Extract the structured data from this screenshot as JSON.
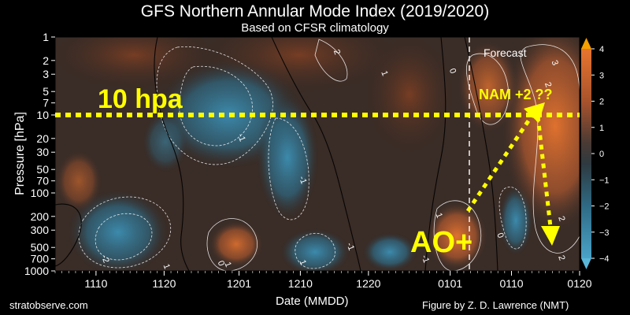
{
  "chart_data": {
    "type": "heatmap",
    "title": "GFS Northern Annular Mode Index (2019/2020)",
    "subtitle": "Based on CFSR climatology",
    "xlabel": "Date (MMDD)",
    "ylabel": "Pressure [hPa]",
    "x_ticks": [
      "1110",
      "1120",
      "1201",
      "1210",
      "1220",
      "0101",
      "0110",
      "0120"
    ],
    "y_ticks": [
      1,
      2,
      3,
      5,
      7,
      10,
      20,
      30,
      50,
      70,
      100,
      200,
      300,
      500,
      700,
      1000
    ],
    "y_scale": "log",
    "y_inverted": true,
    "ylim": [
      1,
      1000
    ],
    "colorbar": {
      "range": [
        -4,
        4
      ],
      "ticks": [
        4,
        3,
        2,
        1,
        0,
        -1,
        -2,
        -3,
        -4
      ],
      "cmap_low": "#3c8fb3",
      "cmap_mid": "#2e2e2e",
      "cmap_high": "#e06a2e"
    },
    "forecast_label": "Forecast",
    "annotations": {
      "level_label": "10 hpa",
      "level_value": 10,
      "forecast_note": "NAM +2 ??",
      "ao_label": "AO+",
      "annotation_color": "#ffff00"
    },
    "contour_labels": [
      {
        "text": "-1",
        "date": "1201",
        "pressure": 20
      },
      {
        "text": "-1",
        "date": "1210",
        "pressure": 70
      },
      {
        "text": "1",
        "date": "1222",
        "pressure": 3
      },
      {
        "text": "2",
        "date": "1215",
        "pressure": 1.6
      },
      {
        "text": "0",
        "date": "0101",
        "pressure": 2.8
      },
      {
        "text": "3",
        "date": "0116",
        "pressure": 2.2
      },
      {
        "text": "2",
        "date": "0115",
        "pressure": 4.2
      },
      {
        "text": "1",
        "date": "1230",
        "pressure": 200
      },
      {
        "text": "0",
        "date": "0108",
        "pressure": 360
      },
      {
        "text": "2",
        "date": "0117",
        "pressure": 220
      },
      {
        "text": "2",
        "date": "0117",
        "pressure": 700
      },
      {
        "text": "1",
        "date": "1120",
        "pressure": 900
      },
      {
        "text": "0",
        "date": "1128",
        "pressure": 820
      },
      {
        "text": "1",
        "date": "1129",
        "pressure": 850
      },
      {
        "text": "1",
        "date": "1210",
        "pressure": 800
      },
      {
        "text": "-1",
        "date": "1217",
        "pressure": 500
      },
      {
        "text": "-2",
        "date": "1111",
        "pressure": 720
      },
      {
        "text": "-1",
        "date": "1228",
        "pressure": 720
      }
    ]
  },
  "credits": {
    "left": "stratobserve.com",
    "right": "Figure by Z. D. Lawrence (NMT)"
  }
}
